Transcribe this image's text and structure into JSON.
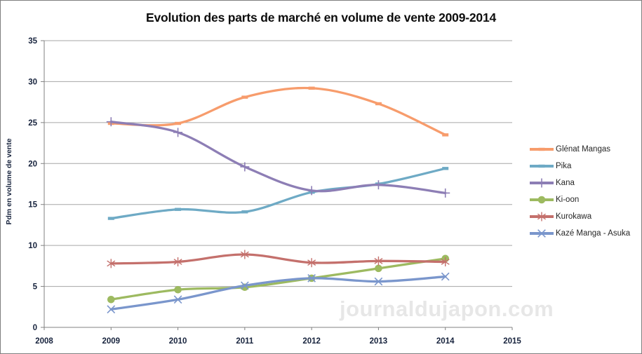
{
  "title": "Evolution des parts de marché en volume de vente 2009-2014",
  "watermark": "journaldujapon.com",
  "chart_data": {
    "type": "line",
    "title": "Evolution des parts de marché en volume de vente 2009-2014",
    "xlabel": "",
    "ylabel": "Pdm en volume de vente",
    "x": [
      2009,
      2010,
      2011,
      2012,
      2013,
      2014
    ],
    "xlim": [
      2008,
      2015
    ],
    "ylim": [
      0,
      35
    ],
    "x_ticks": [
      2008,
      2009,
      2010,
      2011,
      2012,
      2013,
      2014,
      2015
    ],
    "y_ticks": [
      0,
      5,
      10,
      15,
      20,
      25,
      30,
      35
    ],
    "grid": true,
    "smooth_lines": true,
    "legend_position": "right",
    "series": [
      {
        "name": "Glénat Mangas",
        "color": "#F79C6C",
        "marker": "dash",
        "values": [
          24.9,
          24.9,
          28.1,
          29.2,
          27.3,
          23.5
        ]
      },
      {
        "name": "Pika",
        "color": "#6EAAC5",
        "marker": "dash",
        "values": [
          13.3,
          14.4,
          14.1,
          16.5,
          17.5,
          19.4
        ]
      },
      {
        "name": "Kana",
        "color": "#8D7EB5",
        "marker": "plus",
        "values": [
          25.1,
          23.8,
          19.6,
          16.7,
          17.4,
          16.4
        ]
      },
      {
        "name": "Ki-oon",
        "color": "#9DBA60",
        "marker": "circle",
        "values": [
          3.4,
          4.6,
          4.9,
          6.0,
          7.2,
          8.4
        ]
      },
      {
        "name": "Kurokawa",
        "color": "#C4706C",
        "marker": "asterisk",
        "values": [
          7.8,
          8.0,
          8.9,
          7.9,
          8.1,
          8.0
        ]
      },
      {
        "name": "Kazé Manga - Asuka",
        "color": "#7A96CC",
        "marker": "x",
        "values": [
          2.2,
          3.4,
          5.1,
          6.0,
          5.6,
          6.2
        ]
      }
    ],
    "colors": {
      "gridline": "#A6A6A6",
      "axis_line": "#808080",
      "tick_label": "#17233d",
      "background": "#FFFFFF"
    }
  }
}
